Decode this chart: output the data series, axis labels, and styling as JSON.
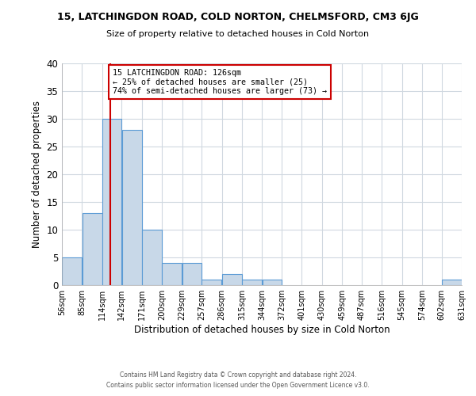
{
  "title_line1": "15, LATCHINGDON ROAD, COLD NORTON, CHELMSFORD, CM3 6JG",
  "title_line2": "Size of property relative to detached houses in Cold Norton",
  "xlabel": "Distribution of detached houses by size in Cold Norton",
  "ylabel": "Number of detached properties",
  "bar_color": "#c8d8e8",
  "bar_edge_color": "#5b9bd5",
  "bins": [
    56,
    85,
    114,
    142,
    171,
    200,
    229,
    257,
    286,
    315,
    344,
    372,
    401,
    430,
    459,
    487,
    516,
    545,
    574,
    602,
    631
  ],
  "counts": [
    5,
    13,
    30,
    28,
    10,
    4,
    4,
    1,
    2,
    1,
    1,
    0,
    0,
    0,
    0,
    0,
    0,
    0,
    0,
    1
  ],
  "tick_labels": [
    "56sqm",
    "85sqm",
    "114sqm",
    "142sqm",
    "171sqm",
    "200sqm",
    "229sqm",
    "257sqm",
    "286sqm",
    "315sqm",
    "344sqm",
    "372sqm",
    "401sqm",
    "430sqm",
    "459sqm",
    "487sqm",
    "516sqm",
    "545sqm",
    "574sqm",
    "602sqm",
    "631sqm"
  ],
  "ylim": [
    0,
    40
  ],
  "yticks": [
    0,
    5,
    10,
    15,
    20,
    25,
    30,
    35,
    40
  ],
  "property_line_x": 126,
  "property_line_color": "#cc0000",
  "annotation_box_color": "#cc0000",
  "annotation_text_line1": "15 LATCHINGDON ROAD: 126sqm",
  "annotation_text_line2": "← 25% of detached houses are smaller (25)",
  "annotation_text_line3": "74% of semi-detached houses are larger (73) →",
  "footer_line1": "Contains HM Land Registry data © Crown copyright and database right 2024.",
  "footer_line2": "Contains public sector information licensed under the Open Government Licence v3.0.",
  "background_color": "#ffffff",
  "grid_color": "#d0d8e0"
}
